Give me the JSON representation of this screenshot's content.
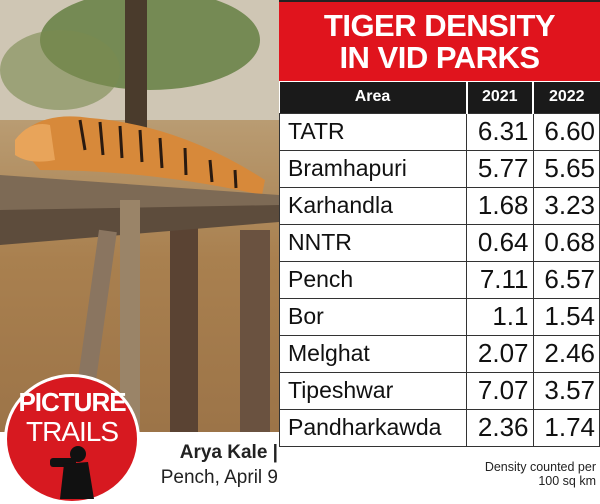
{
  "title_lines": [
    "TIGER DENSITY",
    "IN VID PARKS"
  ],
  "table": {
    "headers": [
      "Area",
      "2021",
      "2022"
    ],
    "rows": [
      [
        "TATR",
        "6.31",
        "6.60"
      ],
      [
        "Bramhapuri",
        "5.77",
        "5.65"
      ],
      [
        "Karhandla",
        "1.68",
        "3.23"
      ],
      [
        "NNTR",
        "0.64",
        "0.68"
      ],
      [
        "Pench",
        "7.11",
        "6.57"
      ],
      [
        "Bor",
        "1.1",
        "1.54"
      ],
      [
        "Melghat",
        "2.07",
        "2.46"
      ],
      [
        "Tipeshwar",
        "7.07",
        "3.57"
      ],
      [
        "Pandharkawda",
        "2.36",
        "1.74"
      ]
    ]
  },
  "note_lines": [
    "Density counted per",
    "100 sq km"
  ],
  "badge": {
    "line1": "PICTURE",
    "line2": "TRAILS",
    "icon": "photographer-silhouette-icon"
  },
  "byline": {
    "author": "Arya Kale |",
    "place_date": "Pench, April 9"
  },
  "colors": {
    "accent": "#e0141d",
    "header": "#1a1a1a"
  }
}
